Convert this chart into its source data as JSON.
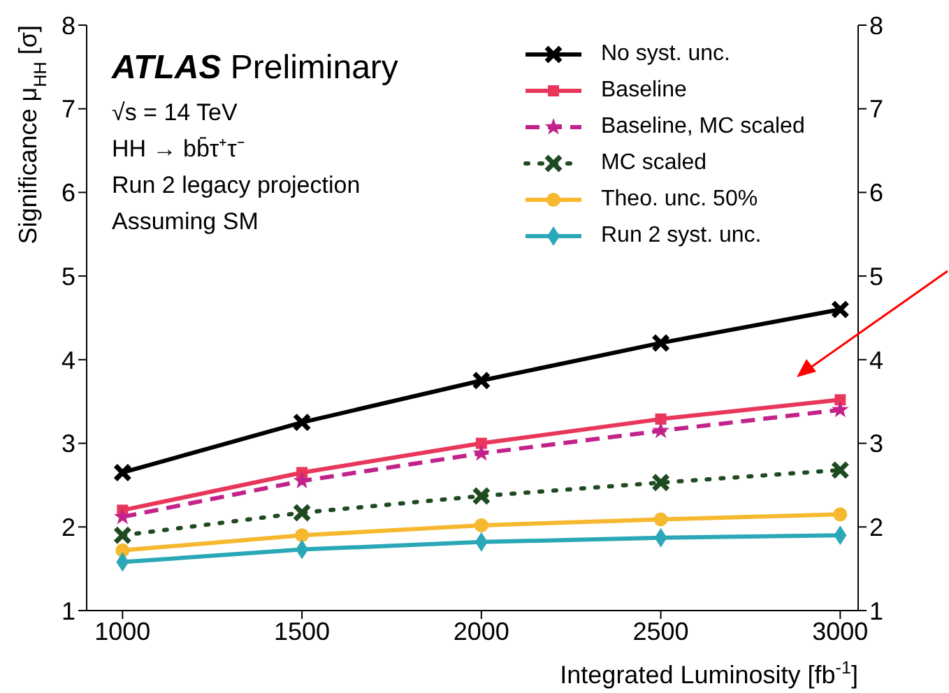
{
  "chart_data": {
    "type": "line",
    "xlabel": "Integrated Luminosity [fb$^{-1}$]",
    "ylabel": "Significance μ$_{HH}$ [σ]",
    "x": [
      1000,
      1500,
      2000,
      2500,
      3000
    ],
    "series": [
      {
        "name": "No syst. unc.",
        "color": "#000000",
        "marker": "cross",
        "line_style": "solid",
        "values": [
          2.65,
          3.25,
          3.75,
          4.2,
          4.6
        ]
      },
      {
        "name": "Baseline",
        "color": "#e8375a",
        "marker": "square",
        "line_style": "solid",
        "values": [
          2.2,
          2.65,
          3.0,
          3.29,
          3.52
        ]
      },
      {
        "name": "Baseline, MC scaled",
        "color": "#c2228a",
        "marker": "star",
        "line_style": "dashed",
        "values": [
          2.12,
          2.55,
          2.88,
          3.15,
          3.4
        ]
      },
      {
        "name": "MC scaled",
        "color": "#1e4a22",
        "marker": "cross",
        "line_style": "dotted",
        "values": [
          1.9,
          2.17,
          2.37,
          2.53,
          2.68
        ]
      },
      {
        "name": "Theo. unc. 50%",
        "color": "#f5b82e",
        "marker": "circle",
        "line_style": "solid",
        "values": [
          1.72,
          1.9,
          2.02,
          2.09,
          2.15
        ]
      },
      {
        "name": "Run 2 syst. unc.",
        "color": "#2aa8b8",
        "marker": "diamond",
        "line_style": "solid",
        "values": [
          1.58,
          1.73,
          1.82,
          1.87,
          1.9
        ]
      }
    ],
    "xlim": [
      900,
      3050
    ],
    "xticks": [
      1000,
      1500,
      2000,
      2500,
      3000
    ],
    "ylim": [
      1,
      8
    ],
    "yticks": [
      1,
      2,
      3,
      4,
      5,
      6,
      7,
      8
    ],
    "y2lim": [
      1,
      8
    ],
    "y2ticks": [
      1,
      2,
      3,
      4,
      5,
      6,
      7,
      8
    ],
    "annotations": [
      "ATLAS Preliminary",
      "√s = 14 TeV",
      "HH → bb̄τ⁺τ⁻",
      "Run 2 legacy projection",
      "Assuming SM"
    ],
    "legend": "top right",
    "grid": false
  }
}
